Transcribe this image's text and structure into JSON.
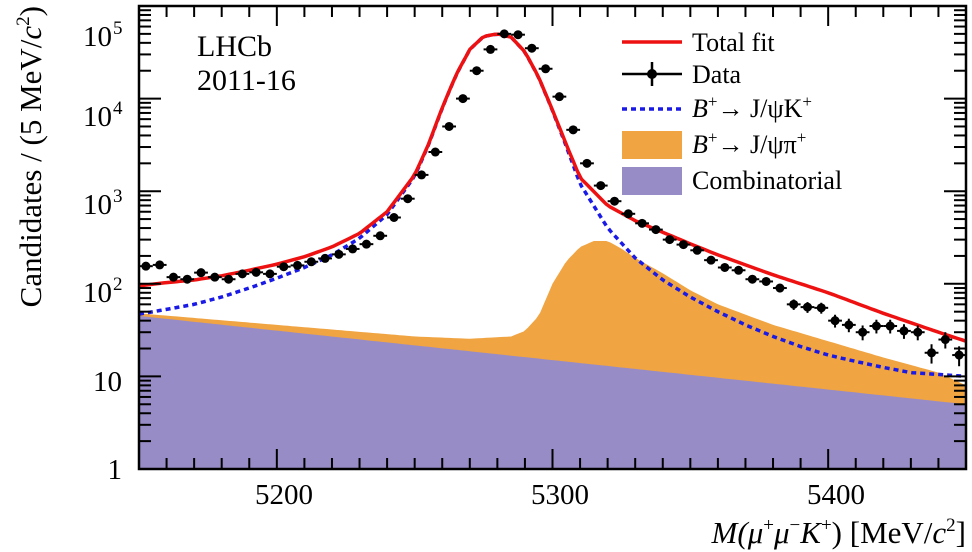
{
  "chart_data": {
    "type": "line",
    "yscale": "log",
    "xlim": [
      5150,
      5450
    ],
    "ylim": [
      1,
      100000
    ],
    "xticks": [
      5200,
      5300,
      5400
    ],
    "xlabel": {
      "pre": "M(",
      "mu1": "μ",
      "s1": "+",
      "mu2": "μ",
      "s2": "−",
      "k": "K",
      "s3": "+",
      "post": ") [MeV/",
      "c": "c",
      "exp": "2",
      "end": "]"
    },
    "ylabel": {
      "pre": "Candidates / (5 MeV/",
      "c": "c",
      "exp": "2",
      "end": ")"
    },
    "yticks": [
      {
        "base": "1",
        "exp": ""
      },
      {
        "base": "10",
        "exp": ""
      },
      {
        "base": "10",
        "exp": "2"
      },
      {
        "base": "10",
        "exp": "3"
      },
      {
        "base": "10",
        "exp": "4"
      },
      {
        "base": "10",
        "exp": "5"
      }
    ],
    "annotation": [
      "LHCb",
      "2011-16"
    ],
    "legend_position": "top-right",
    "legend": [
      {
        "label": "Total fit",
        "kind": "line",
        "color": "#ee1111"
      },
      {
        "label": "Data",
        "kind": "marker",
        "color": "#000000"
      },
      {
        "label": "B+→ J/ψK+",
        "kind": "dashed",
        "color": "#1a1ae6"
      },
      {
        "label": "B+→ J/ψπ+",
        "kind": "fill",
        "color": "#f0a442"
      },
      {
        "label": "Combinatorial",
        "kind": "fill",
        "color": "#988cc6"
      }
    ],
    "series": [
      {
        "name": "Total fit",
        "color": "#ee1111",
        "x": [
          5150,
          5160,
          5170,
          5180,
          5190,
          5200,
          5210,
          5220,
          5230,
          5240,
          5250,
          5255,
          5260,
          5265,
          5270,
          5275,
          5280,
          5285,
          5290,
          5295,
          5300,
          5305,
          5310,
          5320,
          5330,
          5340,
          5350,
          5360,
          5370,
          5380,
          5390,
          5400,
          5410,
          5420,
          5430,
          5440,
          5450
        ],
        "y": [
          95,
          103,
          110,
          122,
          140,
          163,
          196,
          250,
          350,
          600,
          1500,
          3200,
          8000,
          18000,
          34000,
          47000,
          50000,
          46000,
          32000,
          17000,
          7500,
          3200,
          1400,
          700,
          480,
          360,
          270,
          205,
          160,
          125,
          100,
          80,
          62,
          48,
          38,
          30,
          24
        ]
      },
      {
        "name": "B+→ J/ψK+",
        "color": "#1a1ae6",
        "x": [
          5150,
          5160,
          5170,
          5180,
          5190,
          5200,
          5210,
          5220,
          5230,
          5240,
          5250,
          5255,
          5260,
          5265,
          5270,
          5275,
          5280,
          5285,
          5290,
          5295,
          5300,
          5305,
          5310,
          5320,
          5330,
          5340,
          5350,
          5360,
          5370,
          5380,
          5390,
          5400,
          5410,
          5420,
          5430,
          5440,
          5450
        ],
        "y": [
          47,
          53,
          60,
          72,
          90,
          115,
          150,
          205,
          310,
          560,
          1450,
          3150,
          7900,
          17900,
          33900,
          46900,
          49900,
          45900,
          31900,
          16900,
          7400,
          3050,
          1200,
          400,
          190,
          110,
          72,
          50,
          36,
          27,
          21,
          17,
          14.5,
          12.5,
          11,
          10.5,
          10
        ]
      },
      {
        "name": "B+→ J/ψπ+",
        "color": "#f0a442",
        "x": [
          5150,
          5200,
          5250,
          5270,
          5285,
          5290,
          5295,
          5300,
          5305,
          5310,
          5315,
          5320,
          5325,
          5330,
          5340,
          5350,
          5360,
          5380,
          5400,
          5420,
          5440,
          5450
        ],
        "y": [
          48,
          36,
          27,
          25.5,
          27,
          31,
          45,
          100,
          175,
          250,
          290,
          290,
          240,
          190,
          130,
          85,
          60,
          36,
          24,
          16,
          11,
          8
        ]
      },
      {
        "name": "Combinatorial",
        "color": "#988cc6",
        "x": [
          5150,
          5450
        ],
        "y": [
          45,
          5
        ]
      },
      {
        "name": "Data",
        "color": "#000000",
        "x": [
          5152.5,
          5157.5,
          5162.5,
          5167.5,
          5172.5,
          5177.5,
          5182.5,
          5187.5,
          5192.5,
          5197.5,
          5202.5,
          5207.5,
          5212.5,
          5217.5,
          5222.5,
          5227.5,
          5232.5,
          5237.5,
          5242.5,
          5247.5,
          5252.5,
          5257.5,
          5262.5,
          5267.5,
          5272.5,
          5277.5,
          5282.5,
          5287.5,
          5292.5,
          5297.5,
          5302.5,
          5307.5,
          5312.5,
          5317.5,
          5322.5,
          5327.5,
          5332.5,
          5337.5,
          5342.5,
          5347.5,
          5352.5,
          5357.5,
          5362.5,
          5367.5,
          5372.5,
          5377.5,
          5382.5,
          5387.5,
          5392.5,
          5397.5,
          5402.5,
          5407.5,
          5412.5,
          5417.5,
          5422.5,
          5427.5,
          5432.5,
          5437.5,
          5442.5,
          5447.5
        ],
        "y": [
          155,
          160,
          118,
          112,
          132,
          118,
          112,
          128,
          133,
          128,
          153,
          158,
          173,
          188,
          208,
          238,
          268,
          330,
          520,
          830,
          1500,
          2650,
          5000,
          10000,
          20000,
          34000,
          50000,
          49000,
          35000,
          21000,
          10500,
          4600,
          2000,
          1150,
          780,
          570,
          450,
          385,
          300,
          265,
          230,
          180,
          150,
          140,
          112,
          106,
          90,
          60,
          56,
          55,
          40,
          36,
          30,
          35,
          35,
          31,
          30,
          18,
          25,
          17
        ]
      }
    ]
  }
}
